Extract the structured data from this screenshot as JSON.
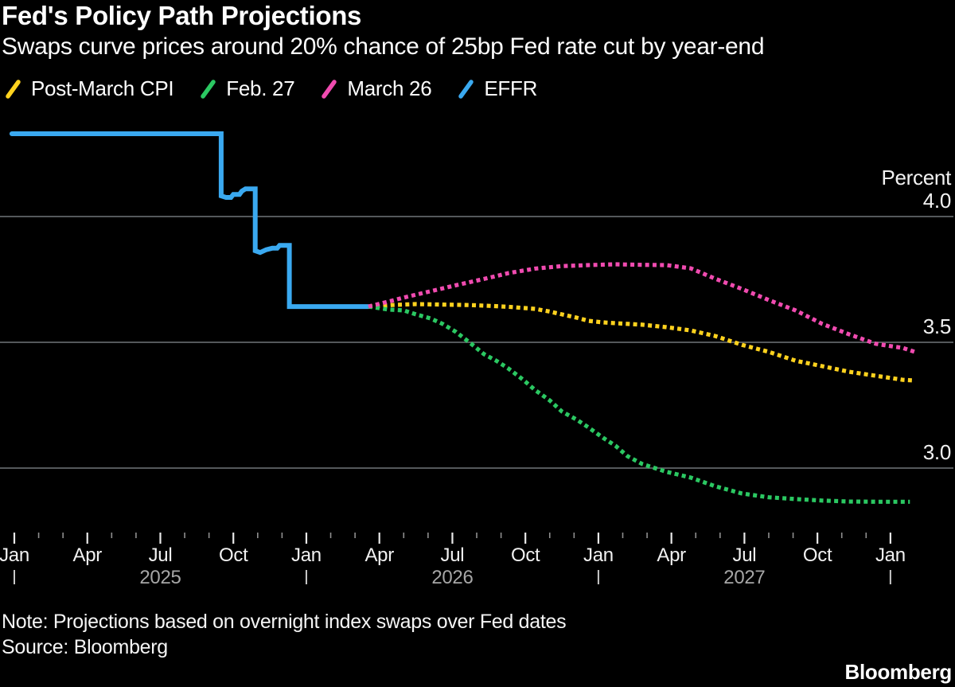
{
  "header": {
    "title": "Fed's Policy Path Projections",
    "subtitle": "Swaps curve prices around 20% chance of 25bp Fed rate cut by year-end"
  },
  "footer": {
    "note": "Note: Projections based on overnight index swaps over Fed dates",
    "source": "Source: Bloomberg",
    "brand": "Bloomberg"
  },
  "chart_data": {
    "type": "line",
    "title": "Fed's Policy Path Projections",
    "subtitle": "Swaps curve prices around 20% chance of 25bp Fed rate cut by year-end",
    "ylabel": "Percent",
    "yticks": [
      "4.0",
      "3.5",
      "3.0"
    ],
    "ylim": [
      2.77,
      4.39
    ],
    "x_unit": "months since Jan 2025",
    "xlim_months": [
      0,
      37
    ],
    "grid_on": true,
    "grid_color": "#54585b",
    "legend_position": "top",
    "x_ticks": [
      {
        "m": 0,
        "label": "Jan"
      },
      {
        "m": 3,
        "label": "Apr"
      },
      {
        "m": 6,
        "label": "Jul"
      },
      {
        "m": 9,
        "label": "Oct"
      },
      {
        "m": 12,
        "label": "Jan"
      },
      {
        "m": 15,
        "label": "Apr"
      },
      {
        "m": 18,
        "label": "Jul"
      },
      {
        "m": 21,
        "label": "Oct"
      },
      {
        "m": 24,
        "label": "Jan"
      },
      {
        "m": 27,
        "label": "Apr"
      },
      {
        "m": 30,
        "label": "Jul"
      },
      {
        "m": 33,
        "label": "Oct"
      },
      {
        "m": 36,
        "label": "Jan"
      }
    ],
    "x_year_labels": [
      {
        "m": 6,
        "label": "2025"
      },
      {
        "m": 18,
        "label": "2026"
      },
      {
        "m": 30,
        "label": "2027"
      }
    ],
    "x_year_marks": [
      0,
      12,
      24,
      36
    ],
    "series": [
      {
        "name": "Post-March CPI",
        "color": "#ffd21e",
        "line_style": "dotted",
        "points": [
          [
            14.55,
            3.642
          ],
          [
            15.5,
            3.648
          ],
          [
            16.5,
            3.652
          ],
          [
            17.6,
            3.65
          ],
          [
            18.7,
            3.648
          ],
          [
            19.5,
            3.645
          ],
          [
            20.3,
            3.641
          ],
          [
            21.4,
            3.633
          ],
          [
            22.0,
            3.622
          ],
          [
            22.5,
            3.611
          ],
          [
            23.1,
            3.598
          ],
          [
            23.6,
            3.585
          ],
          [
            24.2,
            3.579
          ],
          [
            24.7,
            3.576
          ],
          [
            25.8,
            3.57
          ],
          [
            26.8,
            3.56
          ],
          [
            27.8,
            3.547
          ],
          [
            28.8,
            3.525
          ],
          [
            29.9,
            3.49
          ],
          [
            31.0,
            3.462
          ],
          [
            32.1,
            3.427
          ],
          [
            33.2,
            3.405
          ],
          [
            34.3,
            3.383
          ],
          [
            35.4,
            3.367
          ],
          [
            36.5,
            3.351
          ],
          [
            37.0,
            3.348
          ]
        ]
      },
      {
        "name": "Feb. 27",
        "color": "#2bc862",
        "line_style": "dotted",
        "points": [
          [
            14.55,
            3.642
          ],
          [
            15.4,
            3.63
          ],
          [
            16.0,
            3.627
          ],
          [
            16.5,
            3.611
          ],
          [
            17.1,
            3.595
          ],
          [
            17.6,
            3.573
          ],
          [
            18.15,
            3.541
          ],
          [
            18.7,
            3.5
          ],
          [
            19.3,
            3.453
          ],
          [
            19.8,
            3.427
          ],
          [
            20.3,
            3.396
          ],
          [
            20.9,
            3.352
          ],
          [
            21.4,
            3.31
          ],
          [
            22.0,
            3.269
          ],
          [
            22.5,
            3.225
          ],
          [
            23.1,
            3.193
          ],
          [
            23.6,
            3.161
          ],
          [
            24.2,
            3.12
          ],
          [
            24.7,
            3.089
          ],
          [
            25.2,
            3.047
          ],
          [
            25.8,
            3.016
          ],
          [
            26.8,
            2.985
          ],
          [
            27.8,
            2.962
          ],
          [
            28.8,
            2.928
          ],
          [
            29.9,
            2.899
          ],
          [
            31.0,
            2.884
          ],
          [
            32.1,
            2.877
          ],
          [
            33.2,
            2.871
          ],
          [
            34.3,
            2.867
          ],
          [
            35.5,
            2.866
          ],
          [
            36.8,
            2.866
          ]
        ]
      },
      {
        "name": "March 26",
        "color": "#f04bb0",
        "line_style": "dotted",
        "points": [
          [
            14.55,
            3.642
          ],
          [
            15.3,
            3.66
          ],
          [
            16.1,
            3.68
          ],
          [
            17.1,
            3.703
          ],
          [
            18.15,
            3.727
          ],
          [
            19.3,
            3.752
          ],
          [
            20.3,
            3.775
          ],
          [
            21.4,
            3.793
          ],
          [
            22.5,
            3.803
          ],
          [
            23.6,
            3.807
          ],
          [
            24.7,
            3.81
          ],
          [
            25.8,
            3.808
          ],
          [
            26.8,
            3.807
          ],
          [
            27.8,
            3.794
          ],
          [
            28.8,
            3.753
          ],
          [
            29.9,
            3.712
          ],
          [
            31.0,
            3.668
          ],
          [
            32.1,
            3.627
          ],
          [
            33.2,
            3.573
          ],
          [
            34.3,
            3.532
          ],
          [
            35.4,
            3.494
          ],
          [
            36.5,
            3.478
          ],
          [
            37.0,
            3.462
          ]
        ]
      },
      {
        "name": "EFFR",
        "color": "#3aa9f0",
        "line_style": "solid",
        "points": [
          [
            -0.1,
            4.329
          ],
          [
            8.5,
            4.329
          ],
          [
            8.5,
            4.082
          ],
          [
            8.7,
            4.076
          ],
          [
            8.9,
            4.076
          ],
          [
            9.0,
            4.088
          ],
          [
            9.25,
            4.088
          ],
          [
            9.35,
            4.101
          ],
          [
            9.5,
            4.11
          ],
          [
            9.9,
            4.11
          ],
          [
            9.9,
            3.864
          ],
          [
            10.1,
            3.857
          ],
          [
            10.35,
            3.868
          ],
          [
            10.6,
            3.874
          ],
          [
            10.8,
            3.874
          ],
          [
            10.9,
            3.885
          ],
          [
            11.3,
            3.885
          ],
          [
            11.3,
            3.642
          ],
          [
            14.55,
            3.642
          ]
        ]
      }
    ]
  }
}
